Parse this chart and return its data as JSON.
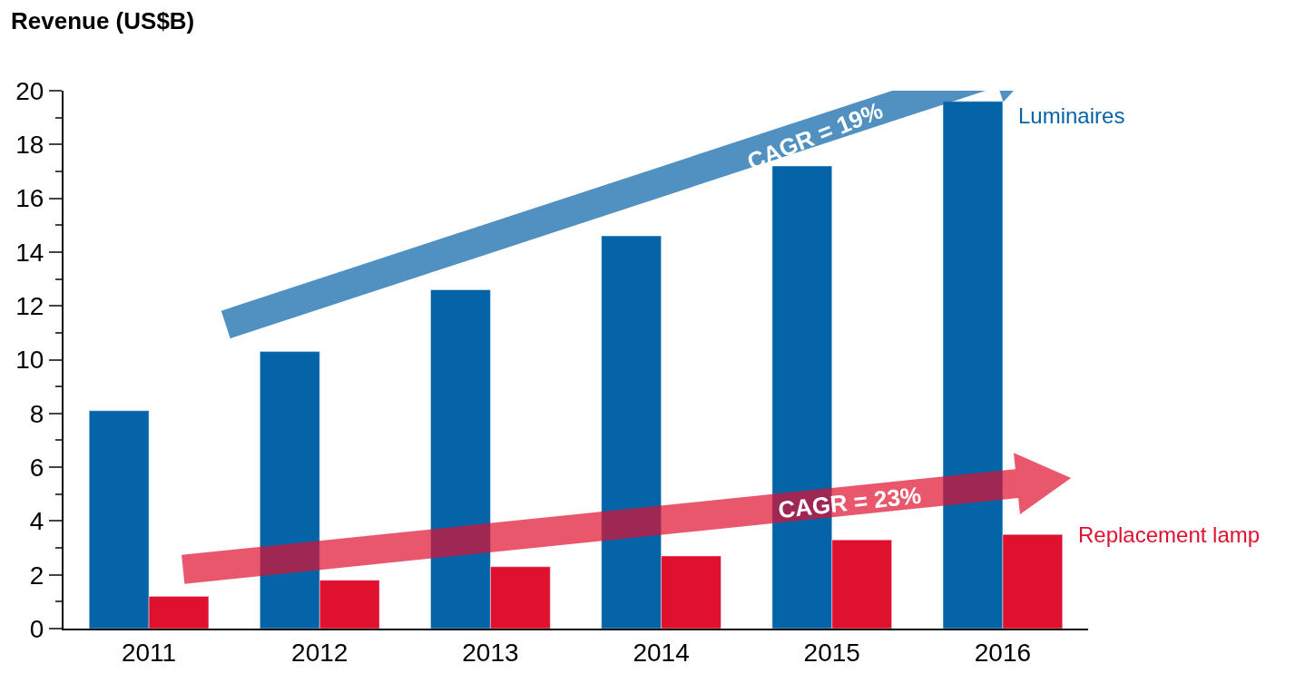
{
  "chart_data": {
    "type": "bar",
    "ylabel": "Revenue (US$B)",
    "categories": [
      "2011",
      "2012",
      "2013",
      "2014",
      "2015",
      "2016"
    ],
    "series": [
      {
        "name": "Luminaires",
        "color": "#0563a8",
        "values": [
          8.1,
          10.3,
          12.6,
          14.6,
          17.2,
          19.6
        ]
      },
      {
        "name": "Replacement lamp",
        "color": "#e0102f",
        "values": [
          1.2,
          1.8,
          2.3,
          2.7,
          3.3,
          3.5
        ]
      }
    ],
    "ylim": [
      0,
      20
    ],
    "yticks": [
      0,
      {
        "value": 1,
        "label": null
      },
      2,
      {
        "value": 3,
        "label": null
      },
      4,
      {
        "value": 5,
        "label": null
      },
      6,
      {
        "value": 7,
        "label": null
      },
      8,
      {
        "value": 9,
        "label": null
      },
      10,
      {
        "value": 11,
        "label": null
      },
      12,
      {
        "value": 13,
        "label": null
      },
      14,
      {
        "value": 15,
        "label": null
      },
      16,
      {
        "value": 17,
        "label": null
      },
      18,
      {
        "value": 19,
        "label": null
      },
      20
    ],
    "annotations": [
      "CAGR = 19%",
      "CAGR = 23%"
    ],
    "legend": false
  }
}
